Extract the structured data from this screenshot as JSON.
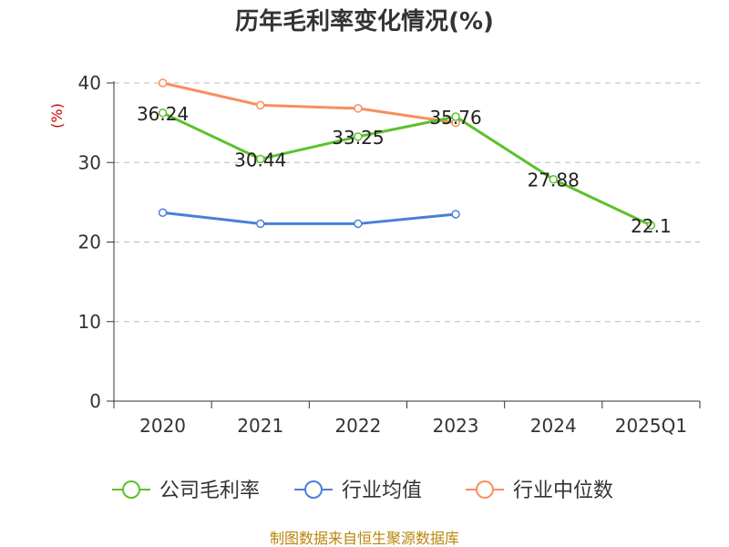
{
  "colors": {
    "company": "#5cc12b",
    "industry_avg": "#4a7fd8",
    "industry_median": "#f98e5e",
    "ylabel": "#cc0000",
    "source": "#b8860b"
  },
  "chart_data": {
    "type": "line",
    "title": "历年毛利率变化情况(%)",
    "ylabel": "(%)",
    "xlabel": "",
    "categories": [
      "2020",
      "2021",
      "2022",
      "2023",
      "2024",
      "2025Q1"
    ],
    "ylim": [
      0,
      40
    ],
    "yticks": [
      "0",
      "10",
      "20",
      "30",
      "40"
    ],
    "grid": true,
    "legend_position": "bottom",
    "series": [
      {
        "name": "公司毛利率",
        "color_key": "company",
        "values": [
          36.24,
          30.44,
          33.25,
          35.76,
          27.88,
          22.1
        ],
        "labels": [
          "36.24",
          "30.44",
          "33.25",
          "35.76",
          "27.88",
          "22.1"
        ]
      },
      {
        "name": "行业均值",
        "color_key": "industry_avg",
        "values": [
          23.7,
          22.3,
          22.3,
          23.5,
          null,
          null
        ]
      },
      {
        "name": "行业中位数",
        "color_key": "industry_median",
        "values": [
          40.0,
          37.2,
          36.8,
          35.0,
          null,
          null
        ]
      }
    ]
  },
  "footer": {
    "source": "制图数据来自恒生聚源数据库"
  }
}
